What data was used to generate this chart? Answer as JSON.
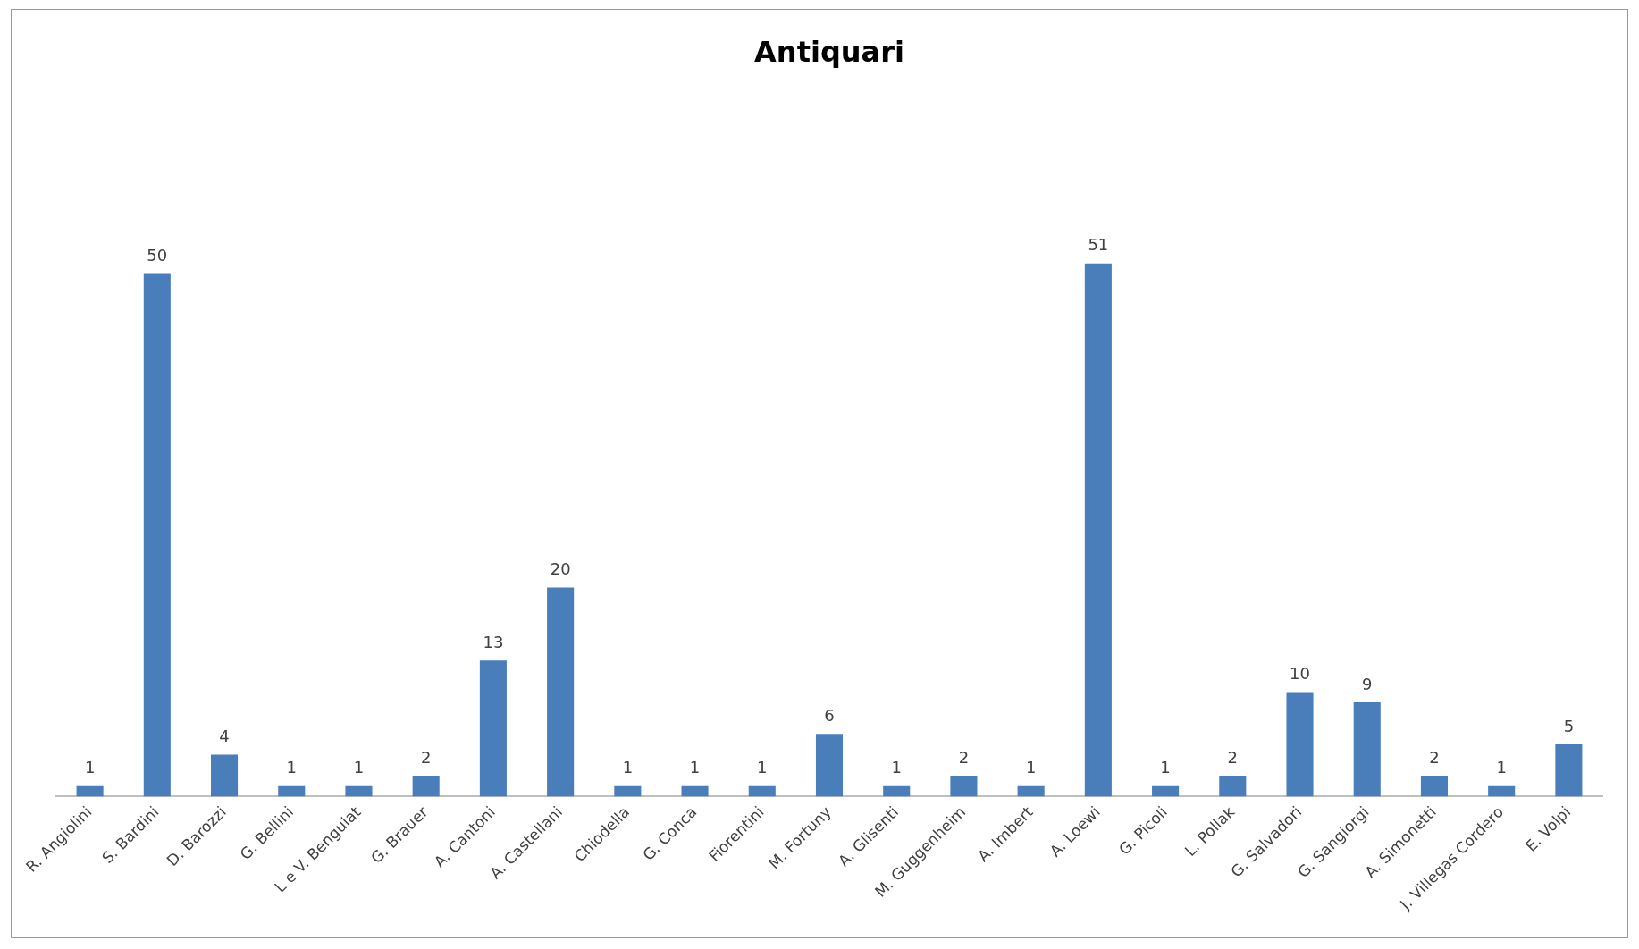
{
  "chart_data": {
    "type": "bar",
    "title": "Antiquari",
    "categories": [
      "R. Angiolini",
      "S. Bardini",
      "D. Barozzi",
      "G. Bellini",
      "L e V. Benguiat",
      "G. Brauer",
      "A. Cantoni",
      "A. Castellani",
      "Chiodella",
      "G. Conca",
      "Fiorentini",
      "M. Fortuny",
      "A. Glisenti",
      "M. Guggenheim",
      "A. Imbert",
      "A. Loewi",
      "G. Picoli",
      "L. Pollak",
      "G. Salvadori",
      "G. Sangiorgi",
      "A. Simonetti",
      "J. Villegas Cordero",
      "E. Volpi"
    ],
    "values": [
      1,
      50,
      4,
      1,
      1,
      2,
      13,
      20,
      1,
      1,
      1,
      6,
      1,
      2,
      1,
      51,
      1,
      2,
      10,
      9,
      2,
      1,
      5
    ],
    "color": "#4a7ebb",
    "data_labels": true,
    "grid": false,
    "legend": false,
    "tick_labels": "x"
  }
}
